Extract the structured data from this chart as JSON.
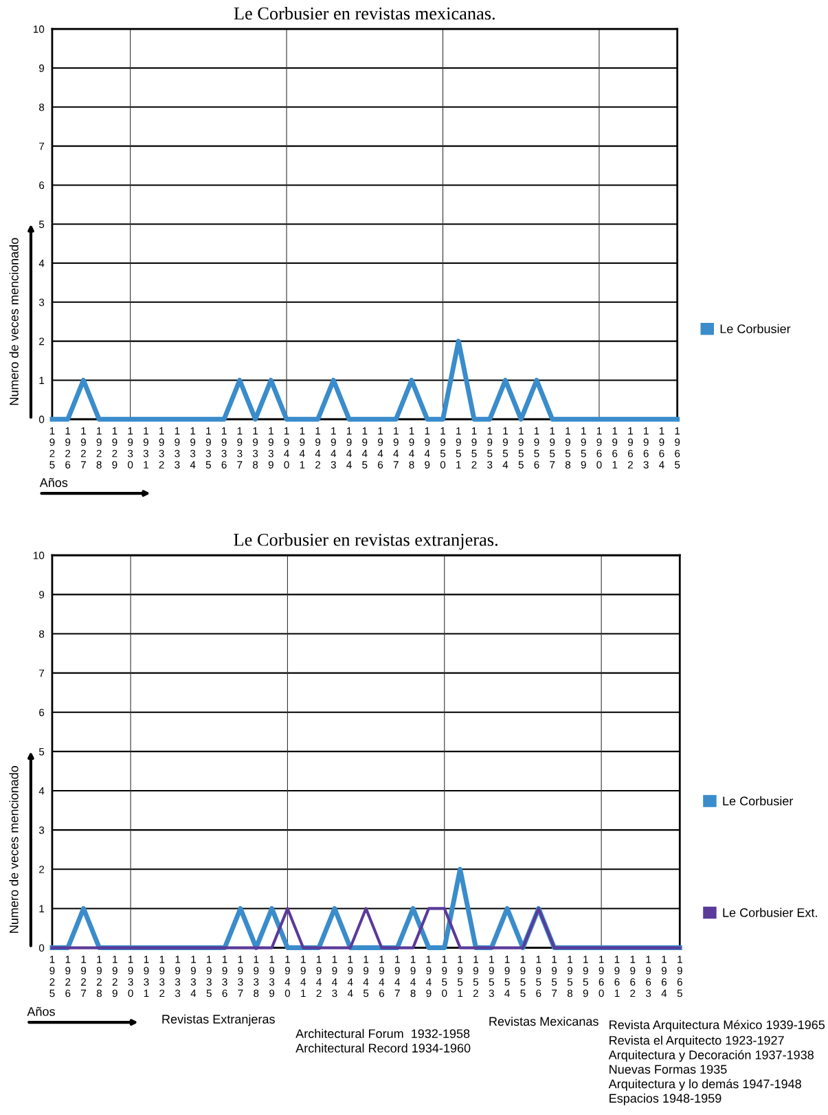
{
  "chart_data": [
    {
      "type": "line",
      "title": "Le Corbusier en revistas mexicanas.",
      "xlabel": "Años",
      "ylabel": "Numero de veces mencionado",
      "x": [
        1925,
        1926,
        1927,
        1928,
        1929,
        1930,
        1931,
        1932,
        1933,
        1934,
        1935,
        1936,
        1937,
        1938,
        1939,
        1940,
        1941,
        1942,
        1943,
        1944,
        1945,
        1946,
        1947,
        1948,
        1949,
        1950,
        1951,
        1952,
        1953,
        1954,
        1955,
        1956,
        1957,
        1958,
        1959,
        1960,
        1961,
        1962,
        1963,
        1964,
        1965
      ],
      "series": [
        {
          "name": "Le Corbusier",
          "color": "#3a8ccb",
          "values": [
            0,
            0,
            1,
            0,
            0,
            0,
            0,
            0,
            0,
            0,
            0,
            0,
            1,
            0,
            1,
            0,
            0,
            0,
            1,
            0,
            0,
            0,
            0,
            1,
            0,
            0,
            2,
            0,
            0,
            1,
            0,
            1,
            0,
            0,
            0,
            0,
            0,
            0,
            0,
            0,
            0
          ]
        }
      ],
      "xlim": [
        1925,
        1965
      ],
      "xticks": [
        1925,
        1926,
        1927,
        1928,
        1929,
        1930,
        1931,
        1932,
        1933,
        1934,
        1935,
        1936,
        1937,
        1938,
        1939,
        1940,
        1941,
        1942,
        1943,
        1944,
        1945,
        1946,
        1947,
        1948,
        1949,
        1950,
        1951,
        1952,
        1953,
        1954,
        1955,
        1956,
        1957,
        1958,
        1959,
        1960,
        1961,
        1962,
        1963,
        1964,
        1965
      ],
      "ylim": [
        0,
        10
      ],
      "yticks": [
        0,
        1,
        2,
        3,
        4,
        5,
        6,
        7,
        8,
        9,
        10
      ],
      "grid": "y",
      "legend": "right",
      "marker": "none",
      "line_style": "solid",
      "ref_lines": [
        {
          "axis": "x",
          "value": 1930,
          "color": "#333333"
        },
        {
          "axis": "x",
          "value": 1940,
          "color": "#333333"
        },
        {
          "axis": "x",
          "value": 1950,
          "color": "#333333"
        },
        {
          "axis": "x",
          "value": 1960,
          "color": "#333333"
        }
      ]
    },
    {
      "type": "line",
      "title": "Le Corbusier en revistas extranjeras.",
      "xlabel": "Años",
      "ylabel": "Numero de veces mencionado",
      "x": [
        1925,
        1926,
        1927,
        1928,
        1929,
        1930,
        1931,
        1932,
        1933,
        1934,
        1935,
        1936,
        1937,
        1938,
        1939,
        1940,
        1941,
        1942,
        1943,
        1944,
        1945,
        1946,
        1947,
        1948,
        1949,
        1950,
        1951,
        1952,
        1953,
        1954,
        1955,
        1956,
        1957,
        1958,
        1959,
        1960,
        1961,
        1962,
        1963,
        1964,
        1965
      ],
      "series": [
        {
          "name": "Le Corbusier",
          "color": "#3a8ccb",
          "values": [
            0,
            0,
            1,
            0,
            0,
            0,
            0,
            0,
            0,
            0,
            0,
            0,
            1,
            0,
            1,
            0,
            0,
            0,
            1,
            0,
            0,
            0,
            0,
            1,
            0,
            0,
            2,
            0,
            0,
            1,
            0,
            1,
            0,
            0,
            0,
            0,
            0,
            0,
            0,
            0,
            0
          ]
        },
        {
          "name": "Le Corbusier Ext.",
          "color": "#5b3a9a",
          "values": [
            0,
            0,
            0,
            0,
            0,
            0,
            0,
            0,
            0,
            0,
            0,
            0,
            0,
            0,
            0,
            1,
            0,
            0,
            0,
            0,
            1,
            0,
            0,
            0,
            1,
            1,
            0,
            0,
            0,
            0,
            0,
            1,
            0,
            0,
            0,
            0,
            0,
            0,
            0,
            0,
            0
          ]
        }
      ],
      "xlim": [
        1925,
        1965
      ],
      "xticks": [
        1925,
        1926,
        1927,
        1928,
        1929,
        1930,
        1931,
        1932,
        1933,
        1934,
        1935,
        1936,
        1937,
        1938,
        1939,
        1940,
        1941,
        1942,
        1943,
        1944,
        1945,
        1946,
        1947,
        1948,
        1949,
        1950,
        1951,
        1952,
        1953,
        1954,
        1955,
        1956,
        1957,
        1958,
        1959,
        1960,
        1961,
        1962,
        1963,
        1964,
        1965
      ],
      "ylim": [
        0,
        10
      ],
      "yticks": [
        0,
        1,
        2,
        3,
        4,
        5,
        6,
        7,
        8,
        9,
        10
      ],
      "grid": "y",
      "legend": "right",
      "marker": "none",
      "line_style": "solid",
      "ref_lines": [
        {
          "axis": "x",
          "value": 1930,
          "color": "#333333"
        },
        {
          "axis": "x",
          "value": 1940,
          "color": "#333333"
        },
        {
          "axis": "x",
          "value": 1950,
          "color": "#333333"
        },
        {
          "axis": "x",
          "value": 1960,
          "color": "#333333"
        }
      ],
      "annotations": [
        "Revistas Extranjeras",
        "Architectural Forum  1932-1958",
        "Architectural Record 1934-1960",
        "Revistas Mexicanas",
        "Revista Arquitectura México 1939-1965",
        "Revista el Arquitecto 1923-1927",
        "Arquitectura y Decoración 1937-1938",
        "Nuevas Formas 1935",
        "Arquitectura y lo demás 1947-1948",
        "Espacios 1948-1959"
      ]
    }
  ]
}
